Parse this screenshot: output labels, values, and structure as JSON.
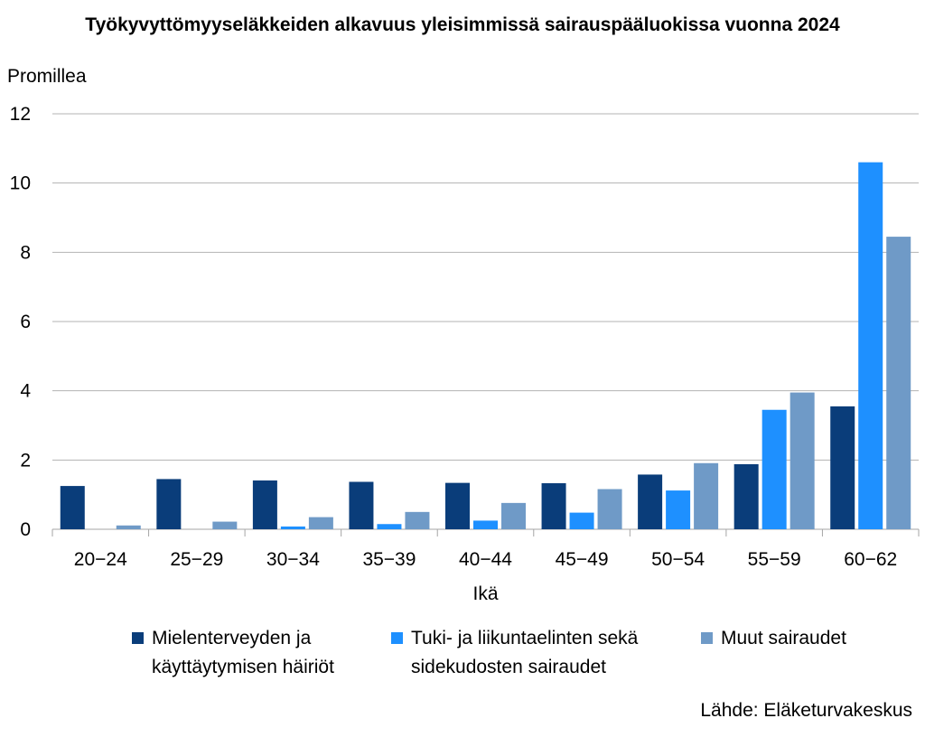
{
  "chart_data": {
    "type": "bar",
    "title": "Työkyvyttömyyseläkkeiden alkavuus yleisimmissä sairauspääluokissa vuonna 2024",
    "ylabel": "Promillea",
    "xlabel": "Ikä",
    "ylim": [
      0,
      12
    ],
    "yticks": [
      "0",
      "2",
      "4",
      "6",
      "8",
      "10",
      "12"
    ],
    "grid": true,
    "legend_position": "bottom",
    "categories": [
      "20−24",
      "25−29",
      "30−34",
      "35−39",
      "40−44",
      "45−49",
      "50−54",
      "55−59",
      "60−62"
    ],
    "series": [
      {
        "name": "Mielenterveyden ja käyttäytymisen häiriöt",
        "name_lines": [
          "Mielenterveyden ja",
          "käyttäytymisen häiriöt"
        ],
        "color": "#0a3d7a",
        "values": [
          1.25,
          1.45,
          1.41,
          1.37,
          1.34,
          1.33,
          1.58,
          1.88,
          3.55
        ]
      },
      {
        "name": "Tuki- ja liikuntaelinten sekä sidekudosten sairaudet",
        "name_lines": [
          "Tuki- ja liikuntaelinten sekä",
          "sidekudosten sairaudet"
        ],
        "color": "#1e90ff",
        "values": [
          0.0,
          0.0,
          0.08,
          0.15,
          0.25,
          0.48,
          1.12,
          3.45,
          10.6
        ]
      },
      {
        "name": "Muut sairaudet",
        "name_lines": [
          "Muut sairaudet"
        ],
        "color": "#6f9ac7",
        "values": [
          0.11,
          0.22,
          0.35,
          0.5,
          0.76,
          1.16,
          1.91,
          3.95,
          8.45
        ]
      }
    ],
    "source": "Lähde: Eläketurvakeskus"
  }
}
